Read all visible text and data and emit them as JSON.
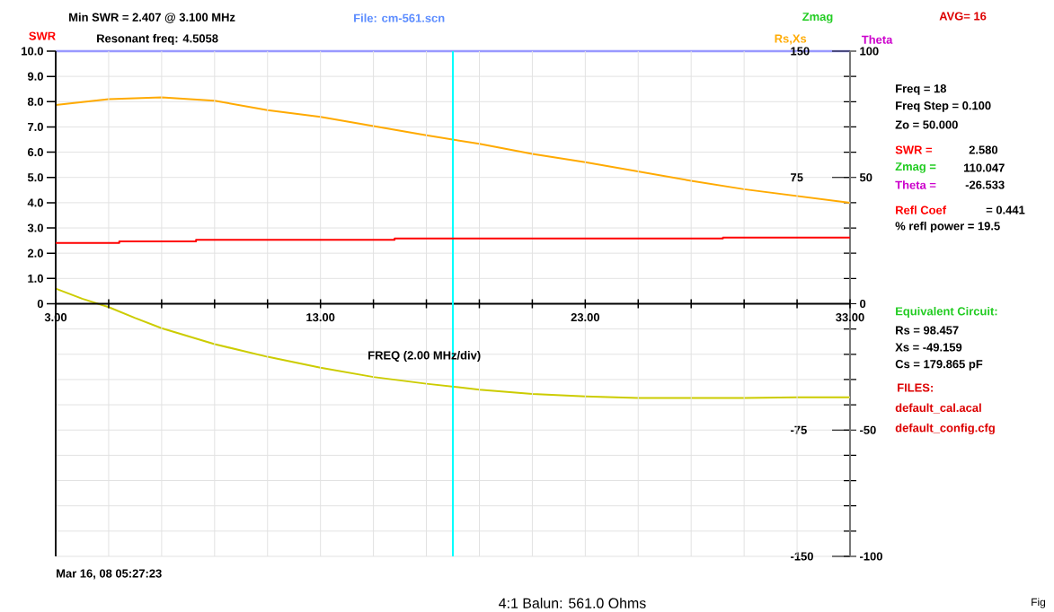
{
  "chart_data": {
    "type": "line",
    "title": "4:1 Balun: 561.0 Ohms",
    "xlabel": "FREQ (2.00 MHz/div)",
    "ylabel": "SWR",
    "y2label": "Rs,Xs",
    "y3label": "Theta",
    "xlim": [
      3,
      33
    ],
    "xticks": [
      {
        "value": 3,
        "label": "3.00"
      },
      {
        "value": 5,
        "label": null
      },
      {
        "value": 7,
        "label": null
      },
      {
        "value": 9,
        "label": null
      },
      {
        "value": 11,
        "label": null
      },
      {
        "value": 13,
        "label": "13.00"
      },
      {
        "value": 15,
        "label": null
      },
      {
        "value": 17,
        "label": null
      },
      {
        "value": 19,
        "label": null
      },
      {
        "value": 21,
        "label": null
      },
      {
        "value": 23,
        "label": "23.00"
      },
      {
        "value": 25,
        "label": null
      },
      {
        "value": 27,
        "label": null
      },
      {
        "value": 29,
        "label": null
      },
      {
        "value": 31,
        "label": null
      },
      {
        "value": 33,
        "label": "33.00"
      }
    ],
    "ylim": [
      -10,
      10
    ],
    "yticks": [
      0,
      {
        "value": 1,
        "label": "1.0"
      },
      {
        "value": 2,
        "label": "2.0"
      },
      {
        "value": 3,
        "label": "3.0"
      },
      {
        "value": 4,
        "label": "4.0"
      },
      {
        "value": 5,
        "label": "5.0"
      },
      {
        "value": 6,
        "label": "6.0"
      },
      {
        "value": 7,
        "label": "7.0"
      },
      {
        "value": 8,
        "label": "8.0"
      },
      {
        "value": 9,
        "label": "9.0"
      },
      {
        "value": 10,
        "label": "10.0"
      }
    ],
    "y2lim": [
      -150,
      150
    ],
    "y2ticks": [
      150,
      75,
      -75,
      -150
    ],
    "y3lim": [
      -100,
      100
    ],
    "y3ticks": [
      100,
      {
        "value": 90,
        "label": null
      },
      {
        "value": 80,
        "label": null
      },
      {
        "value": 70,
        "label": null
      },
      {
        "value": 60,
        "label": null
      },
      50,
      {
        "value": 40,
        "label": null
      },
      {
        "value": 30,
        "label": null
      },
      {
        "value": 20,
        "label": null
      },
      {
        "value": 10,
        "label": null
      },
      0,
      {
        "value": -10,
        "label": null
      },
      {
        "value": -20,
        "label": null
      },
      {
        "value": -30,
        "label": null
      },
      {
        "value": -40,
        "label": null
      },
      -50,
      {
        "value": -60,
        "label": null
      },
      {
        "value": -70,
        "label": null
      },
      {
        "value": -80,
        "label": null
      },
      {
        "value": -90,
        "label": null
      },
      -100
    ],
    "grid": true,
    "series": [
      {
        "color": "#ff0000",
        "type": "step",
        "x": [
          3,
          5.4,
          8.3,
          15.8,
          28.2,
          33
        ],
        "values": [
          2.41,
          2.47,
          2.53,
          2.58,
          2.62,
          2.62
        ]
      },
      {
        "color": "#ffaa00",
        "axis": "y2",
        "x": [
          3,
          5,
          7,
          9,
          11,
          13,
          15,
          17,
          19,
          21,
          23,
          25,
          27,
          29,
          31,
          33
        ],
        "values": [
          118,
          121.5,
          122.5,
          120.5,
          115,
          111,
          105.5,
          100,
          95,
          89,
          84,
          78.5,
          73,
          68,
          64,
          60
        ]
      },
      {
        "color": "#cccc00",
        "axis": "y2",
        "x": [
          3,
          4,
          5,
          6,
          7,
          9,
          11,
          13,
          15,
          17,
          19,
          21,
          23,
          25,
          27,
          29,
          31,
          33
        ],
        "values": [
          9,
          3,
          -2,
          -8.5,
          -14.5,
          -24,
          -31.5,
          -38,
          -43.5,
          -47.5,
          -51,
          -53.5,
          -55,
          -56,
          -56,
          -56,
          -55.5,
          -55.5
        ]
      }
    ],
    "ref_lines": [
      {
        "axis": "x",
        "value": 18,
        "color": "#00ffff"
      }
    ],
    "annotations": [
      "Min SWR =  2.407 @  3.100 MHz",
      "Resonant freq:  4.5058",
      "File: cm-561.scn",
      "Zmag",
      "AVG=  16",
      "Freq =  18",
      "Freq Step =  0.100",
      "Zo =   50.000",
      "SWR  =",
      "2.580",
      "Zmag =",
      "110.047",
      "Theta =",
      "-26.533",
      "Refl Coef",
      "= 0.441",
      "% refl power = 19.5",
      "Equivalent Circuit:",
      "Rs =   98.457",
      "Xs =  -49.159",
      "Cs =  179.865  pF",
      "FILES:",
      "default_cal.acal",
      "default_config.cfg",
      "Mar 16, 08  05:27:23",
      "Fig"
    ]
  }
}
